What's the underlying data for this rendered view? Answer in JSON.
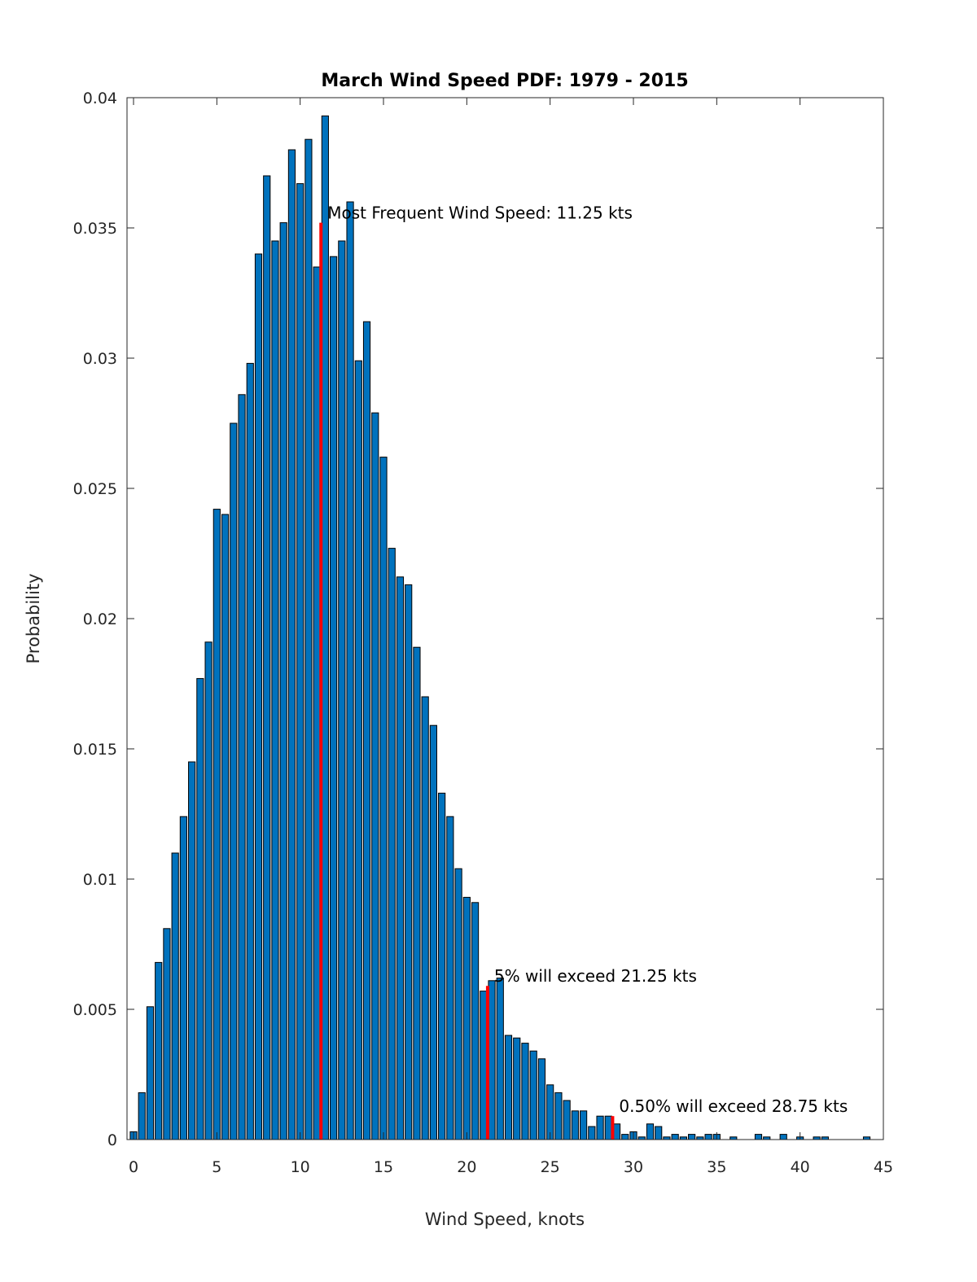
{
  "chart_data": {
    "type": "bar",
    "title": "March Wind Speed PDF: 1979 - 2015",
    "xlabel": "Wind Speed, knots",
    "ylabel": "Probability",
    "xlim": [
      0,
      45
    ],
    "ylim": [
      0,
      0.04
    ],
    "x_ticks": [
      "0",
      "5",
      "10",
      "15",
      "20",
      "25",
      "30",
      "35",
      "40",
      "45"
    ],
    "x_tick_values": [
      0,
      5,
      10,
      15,
      20,
      25,
      30,
      35,
      40,
      45
    ],
    "y_ticks": [
      "0",
      "0.005",
      "0.01",
      "0.015",
      "0.02",
      "0.025",
      "0.03",
      "0.035",
      "0.04"
    ],
    "y_tick_values": [
      0,
      0.005,
      0.01,
      0.015,
      0.02,
      0.025,
      0.03,
      0.035,
      0.04
    ],
    "bar_color": "#0072BD",
    "marker_color": "#FF0000",
    "grid": false,
    "series": [
      {
        "x": [
          0,
          0.5,
          1,
          1.5,
          2,
          2.5,
          3,
          3.5,
          4,
          4.5,
          5,
          5.5,
          6,
          6.5,
          7,
          7.5,
          8,
          8.5,
          9,
          9.5,
          10,
          10.5,
          11,
          11.5,
          12,
          12.5,
          13,
          13.5,
          14,
          14.5,
          15,
          15.5,
          16,
          16.5,
          17,
          17.5,
          18,
          18.5,
          19,
          19.5,
          20,
          20.5,
          21,
          21.5,
          22,
          22.5,
          23,
          23.5,
          24,
          24.5,
          25,
          25.5,
          26,
          26.5,
          27,
          27.5,
          28,
          28.5,
          29,
          29.5,
          30,
          30.5,
          31,
          31.5,
          32,
          32.5,
          33,
          33.5,
          34,
          34.5,
          35,
          36,
          37.5,
          38,
          39,
          40,
          41,
          41.5,
          44
        ],
        "values": [
          0.0003,
          0.0018,
          0.0051,
          0.0068,
          0.0081,
          0.011,
          0.0124,
          0.0145,
          0.0177,
          0.0191,
          0.0242,
          0.024,
          0.0275,
          0.0286,
          0.0298,
          0.034,
          0.037,
          0.0345,
          0.0352,
          0.038,
          0.0367,
          0.0384,
          0.0335,
          0.0393,
          0.0339,
          0.0345,
          0.036,
          0.0299,
          0.0314,
          0.0279,
          0.0262,
          0.0227,
          0.0216,
          0.0213,
          0.0189,
          0.017,
          0.0159,
          0.0133,
          0.0124,
          0.0104,
          0.0093,
          0.0091,
          0.0057,
          0.0061,
          0.0062,
          0.004,
          0.0039,
          0.0037,
          0.0034,
          0.0031,
          0.0021,
          0.0018,
          0.0015,
          0.0011,
          0.0011,
          0.0005,
          0.0009,
          0.0009,
          0.0006,
          0.0002,
          0.0003,
          0.0001,
          0.0006,
          0.0005,
          0.0001,
          0.0002,
          0.0001,
          0.0002,
          0.0001,
          0.0002,
          0.0002,
          0.0001,
          0.0002,
          0.0001,
          0.0002,
          0.0001,
          0.0001,
          0.0001,
          0.0001
        ]
      }
    ],
    "markers": [
      {
        "x": 11.25,
        "y": 0.0352,
        "label": "Most Frequent Wind Speed: 11.25 kts"
      },
      {
        "x": 21.25,
        "y": 0.0059,
        "label": "5% will exceed 21.25 kts"
      },
      {
        "x": 28.75,
        "y": 0.0009,
        "label": "0.50% will exceed 28.75 kts"
      }
    ]
  }
}
